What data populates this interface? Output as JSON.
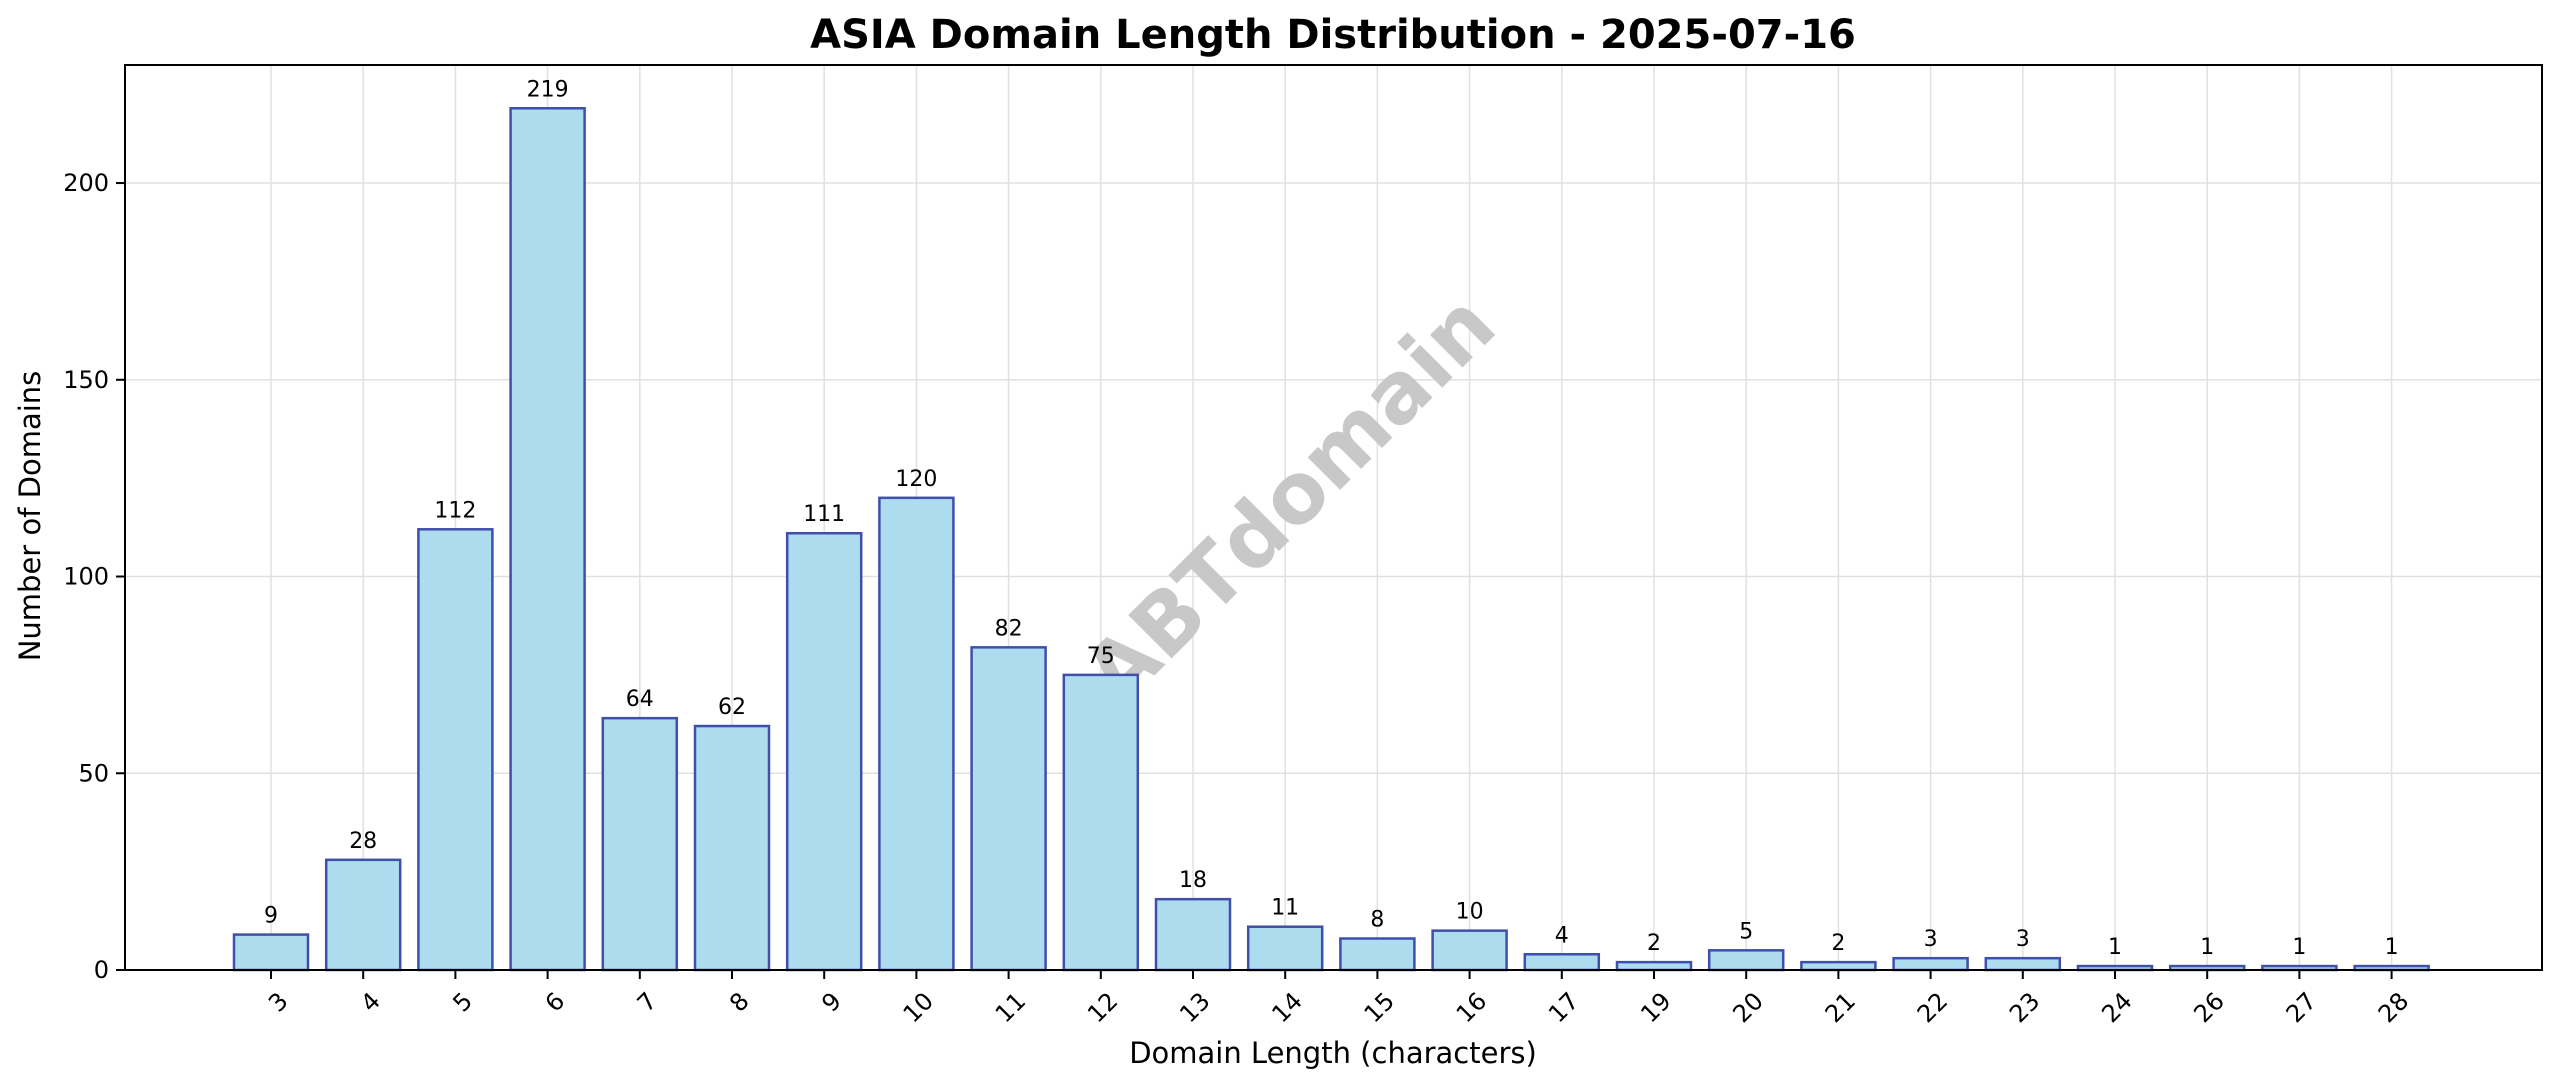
{
  "chart_data": {
    "type": "bar",
    "title": "ASIA Domain Length Distribution - 2025-07-16",
    "xlabel": "Domain Length (characters)",
    "ylabel": "Number of Domains",
    "categories": [
      "3",
      "4",
      "5",
      "6",
      "7",
      "8",
      "9",
      "10",
      "11",
      "12",
      "13",
      "14",
      "15",
      "16",
      "17",
      "19",
      "20",
      "21",
      "22",
      "23",
      "24",
      "26",
      "27",
      "28"
    ],
    "values": [
      9,
      28,
      112,
      219,
      64,
      62,
      111,
      120,
      82,
      75,
      18,
      11,
      8,
      10,
      4,
      2,
      5,
      2,
      3,
      3,
      1,
      1,
      1,
      1
    ],
    "data_labels": [
      "9",
      "28",
      "112",
      "219",
      "64",
      "62",
      "111",
      "120",
      "82",
      "75",
      "18",
      "11",
      "8",
      "10",
      "4",
      "2",
      "5",
      "2",
      "3",
      "3",
      "1",
      "1",
      "1",
      "1"
    ],
    "ylim": [
      0,
      230
    ],
    "yticks": [
      0,
      50,
      100,
      150,
      200
    ],
    "ytick_labels": [
      "0",
      "50",
      "100",
      "150",
      "200"
    ],
    "grid": true,
    "legend": "none",
    "watermark": "ABTdomain",
    "colors": {
      "bar_fill": "#ADDCEF",
      "bar_edge": "#3F4FAA",
      "grid": "#e0e0e0",
      "watermark": "#c8c8c8"
    }
  }
}
